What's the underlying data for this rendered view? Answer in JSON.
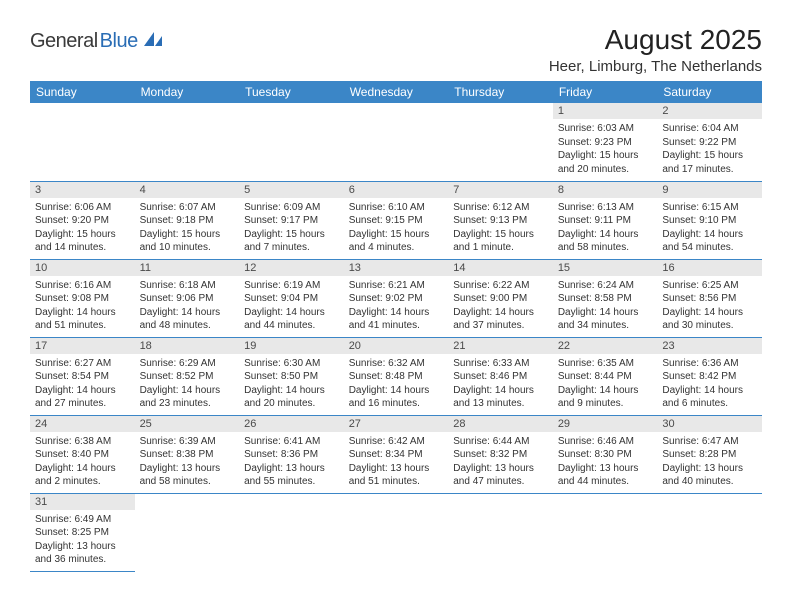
{
  "brand": {
    "text1": "General",
    "text2": "Blue"
  },
  "title": "August 2025",
  "location": "Heer, Limburg, The Netherlands",
  "colors": {
    "header_bg": "#3b86c7",
    "header_fg": "#ffffff",
    "daynum_bg": "#e8e8e8",
    "cell_border": "#3b86c7",
    "page_bg": "#ffffff"
  },
  "weekdays": [
    "Sunday",
    "Monday",
    "Tuesday",
    "Wednesday",
    "Thursday",
    "Friday",
    "Saturday"
  ],
  "grid": [
    [
      {
        "day": "",
        "sunrise": "",
        "sunset": "",
        "daylight": ""
      },
      {
        "day": "",
        "sunrise": "",
        "sunset": "",
        "daylight": ""
      },
      {
        "day": "",
        "sunrise": "",
        "sunset": "",
        "daylight": ""
      },
      {
        "day": "",
        "sunrise": "",
        "sunset": "",
        "daylight": ""
      },
      {
        "day": "",
        "sunrise": "",
        "sunset": "",
        "daylight": ""
      },
      {
        "day": "1",
        "sunrise": "Sunrise: 6:03 AM",
        "sunset": "Sunset: 9:23 PM",
        "daylight": "Daylight: 15 hours and 20 minutes."
      },
      {
        "day": "2",
        "sunrise": "Sunrise: 6:04 AM",
        "sunset": "Sunset: 9:22 PM",
        "daylight": "Daylight: 15 hours and 17 minutes."
      }
    ],
    [
      {
        "day": "3",
        "sunrise": "Sunrise: 6:06 AM",
        "sunset": "Sunset: 9:20 PM",
        "daylight": "Daylight: 15 hours and 14 minutes."
      },
      {
        "day": "4",
        "sunrise": "Sunrise: 6:07 AM",
        "sunset": "Sunset: 9:18 PM",
        "daylight": "Daylight: 15 hours and 10 minutes."
      },
      {
        "day": "5",
        "sunrise": "Sunrise: 6:09 AM",
        "sunset": "Sunset: 9:17 PM",
        "daylight": "Daylight: 15 hours and 7 minutes."
      },
      {
        "day": "6",
        "sunrise": "Sunrise: 6:10 AM",
        "sunset": "Sunset: 9:15 PM",
        "daylight": "Daylight: 15 hours and 4 minutes."
      },
      {
        "day": "7",
        "sunrise": "Sunrise: 6:12 AM",
        "sunset": "Sunset: 9:13 PM",
        "daylight": "Daylight: 15 hours and 1 minute."
      },
      {
        "day": "8",
        "sunrise": "Sunrise: 6:13 AM",
        "sunset": "Sunset: 9:11 PM",
        "daylight": "Daylight: 14 hours and 58 minutes."
      },
      {
        "day": "9",
        "sunrise": "Sunrise: 6:15 AM",
        "sunset": "Sunset: 9:10 PM",
        "daylight": "Daylight: 14 hours and 54 minutes."
      }
    ],
    [
      {
        "day": "10",
        "sunrise": "Sunrise: 6:16 AM",
        "sunset": "Sunset: 9:08 PM",
        "daylight": "Daylight: 14 hours and 51 minutes."
      },
      {
        "day": "11",
        "sunrise": "Sunrise: 6:18 AM",
        "sunset": "Sunset: 9:06 PM",
        "daylight": "Daylight: 14 hours and 48 minutes."
      },
      {
        "day": "12",
        "sunrise": "Sunrise: 6:19 AM",
        "sunset": "Sunset: 9:04 PM",
        "daylight": "Daylight: 14 hours and 44 minutes."
      },
      {
        "day": "13",
        "sunrise": "Sunrise: 6:21 AM",
        "sunset": "Sunset: 9:02 PM",
        "daylight": "Daylight: 14 hours and 41 minutes."
      },
      {
        "day": "14",
        "sunrise": "Sunrise: 6:22 AM",
        "sunset": "Sunset: 9:00 PM",
        "daylight": "Daylight: 14 hours and 37 minutes."
      },
      {
        "day": "15",
        "sunrise": "Sunrise: 6:24 AM",
        "sunset": "Sunset: 8:58 PM",
        "daylight": "Daylight: 14 hours and 34 minutes."
      },
      {
        "day": "16",
        "sunrise": "Sunrise: 6:25 AM",
        "sunset": "Sunset: 8:56 PM",
        "daylight": "Daylight: 14 hours and 30 minutes."
      }
    ],
    [
      {
        "day": "17",
        "sunrise": "Sunrise: 6:27 AM",
        "sunset": "Sunset: 8:54 PM",
        "daylight": "Daylight: 14 hours and 27 minutes."
      },
      {
        "day": "18",
        "sunrise": "Sunrise: 6:29 AM",
        "sunset": "Sunset: 8:52 PM",
        "daylight": "Daylight: 14 hours and 23 minutes."
      },
      {
        "day": "19",
        "sunrise": "Sunrise: 6:30 AM",
        "sunset": "Sunset: 8:50 PM",
        "daylight": "Daylight: 14 hours and 20 minutes."
      },
      {
        "day": "20",
        "sunrise": "Sunrise: 6:32 AM",
        "sunset": "Sunset: 8:48 PM",
        "daylight": "Daylight: 14 hours and 16 minutes."
      },
      {
        "day": "21",
        "sunrise": "Sunrise: 6:33 AM",
        "sunset": "Sunset: 8:46 PM",
        "daylight": "Daylight: 14 hours and 13 minutes."
      },
      {
        "day": "22",
        "sunrise": "Sunrise: 6:35 AM",
        "sunset": "Sunset: 8:44 PM",
        "daylight": "Daylight: 14 hours and 9 minutes."
      },
      {
        "day": "23",
        "sunrise": "Sunrise: 6:36 AM",
        "sunset": "Sunset: 8:42 PM",
        "daylight": "Daylight: 14 hours and 6 minutes."
      }
    ],
    [
      {
        "day": "24",
        "sunrise": "Sunrise: 6:38 AM",
        "sunset": "Sunset: 8:40 PM",
        "daylight": "Daylight: 14 hours and 2 minutes."
      },
      {
        "day": "25",
        "sunrise": "Sunrise: 6:39 AM",
        "sunset": "Sunset: 8:38 PM",
        "daylight": "Daylight: 13 hours and 58 minutes."
      },
      {
        "day": "26",
        "sunrise": "Sunrise: 6:41 AM",
        "sunset": "Sunset: 8:36 PM",
        "daylight": "Daylight: 13 hours and 55 minutes."
      },
      {
        "day": "27",
        "sunrise": "Sunrise: 6:42 AM",
        "sunset": "Sunset: 8:34 PM",
        "daylight": "Daylight: 13 hours and 51 minutes."
      },
      {
        "day": "28",
        "sunrise": "Sunrise: 6:44 AM",
        "sunset": "Sunset: 8:32 PM",
        "daylight": "Daylight: 13 hours and 47 minutes."
      },
      {
        "day": "29",
        "sunrise": "Sunrise: 6:46 AM",
        "sunset": "Sunset: 8:30 PM",
        "daylight": "Daylight: 13 hours and 44 minutes."
      },
      {
        "day": "30",
        "sunrise": "Sunrise: 6:47 AM",
        "sunset": "Sunset: 8:28 PM",
        "daylight": "Daylight: 13 hours and 40 minutes."
      }
    ],
    [
      {
        "day": "31",
        "sunrise": "Sunrise: 6:49 AM",
        "sunset": "Sunset: 8:25 PM",
        "daylight": "Daylight: 13 hours and 36 minutes."
      },
      {
        "day": "",
        "sunrise": "",
        "sunset": "",
        "daylight": ""
      },
      {
        "day": "",
        "sunrise": "",
        "sunset": "",
        "daylight": ""
      },
      {
        "day": "",
        "sunrise": "",
        "sunset": "",
        "daylight": ""
      },
      {
        "day": "",
        "sunrise": "",
        "sunset": "",
        "daylight": ""
      },
      {
        "day": "",
        "sunrise": "",
        "sunset": "",
        "daylight": ""
      },
      {
        "day": "",
        "sunrise": "",
        "sunset": "",
        "daylight": ""
      }
    ]
  ]
}
